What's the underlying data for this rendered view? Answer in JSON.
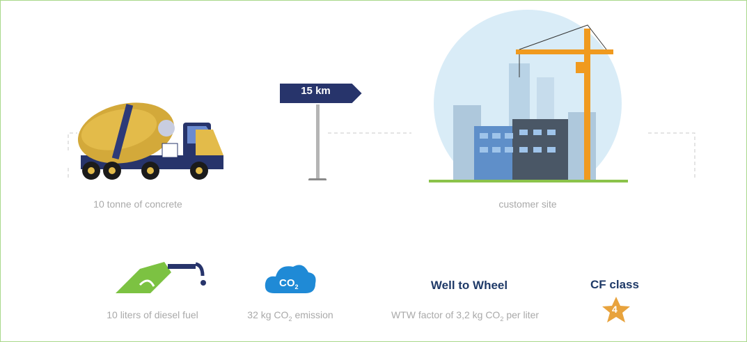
{
  "route": {
    "distance": "15 km",
    "origin": "10 tonne of concrete",
    "destination": "customer site"
  },
  "facts": [
    {
      "label": "10 liters of diesel fuel"
    },
    {
      "icon_text": {
        "main": "CO",
        "sub": "2"
      },
      "label": {
        "main": "32 kg CO",
        "sub": "2",
        "rest": "emission"
      }
    },
    {
      "heading": "Well to Wheel",
      "label": {
        "main": "WTW factor of 3,2 kg CO",
        "sub": "2",
        "rest": "per liter"
      }
    },
    {
      "heading": "CF class",
      "badge": "4"
    }
  ]
}
